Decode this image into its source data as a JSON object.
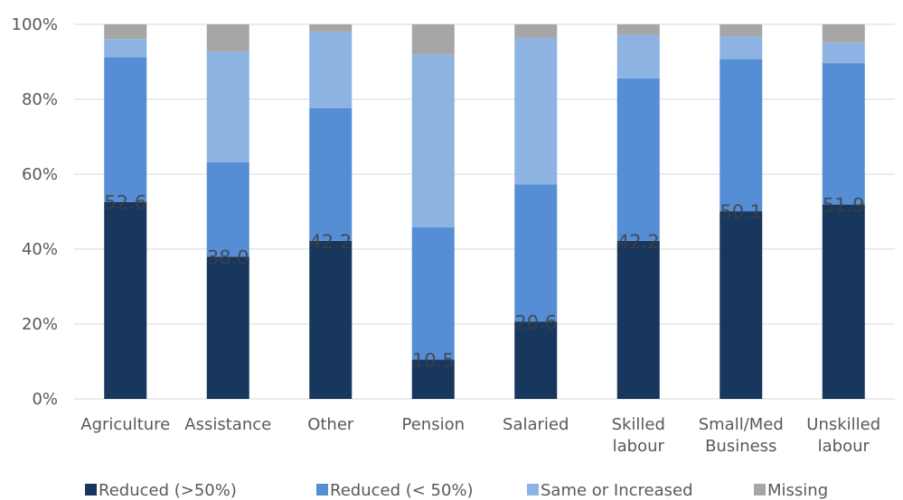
{
  "chart_data": {
    "type": "bar",
    "stacked": true,
    "categories": [
      [
        "Agriculture"
      ],
      [
        "Assistance"
      ],
      [
        "Other"
      ],
      [
        "Pension"
      ],
      [
        "Salaried"
      ],
      [
        "Skilled",
        "labour"
      ],
      [
        "Small/Med",
        "Business"
      ],
      [
        "Unskilled",
        "labour"
      ]
    ],
    "series": [
      {
        "name": "Reduced (>50%)",
        "color": "#17375e",
        "values": [
          52.6,
          38.0,
          42.2,
          10.5,
          20.6,
          42.2,
          50.1,
          51.9
        ]
      },
      {
        "name": "Reduced (< 50%)",
        "color": "#558ed5",
        "values": [
          38.6,
          25.2,
          35.4,
          35.3,
          36.7,
          43.4,
          40.6,
          37.8
        ]
      },
      {
        "name": "Same or Increased",
        "color": "#8db3e2",
        "values": [
          4.9,
          29.6,
          20.4,
          46.2,
          39.1,
          11.6,
          6.1,
          5.4
        ]
      },
      {
        "name": "Missing",
        "color": "#a6a6a6",
        "values": [
          3.9,
          7.2,
          2.0,
          8.0,
          3.6,
          2.8,
          3.2,
          4.9
        ]
      }
    ],
    "data_labels": [
      "52.6",
      "38.0",
      "42.2",
      "10.5",
      "20.6",
      "42.2",
      "50.1",
      "51.9"
    ],
    "yticks": [
      "0%",
      "20%",
      "40%",
      "60%",
      "80%",
      "100%"
    ],
    "ylim": [
      0,
      100
    ],
    "grid": true,
    "legend_position": "bottom"
  }
}
